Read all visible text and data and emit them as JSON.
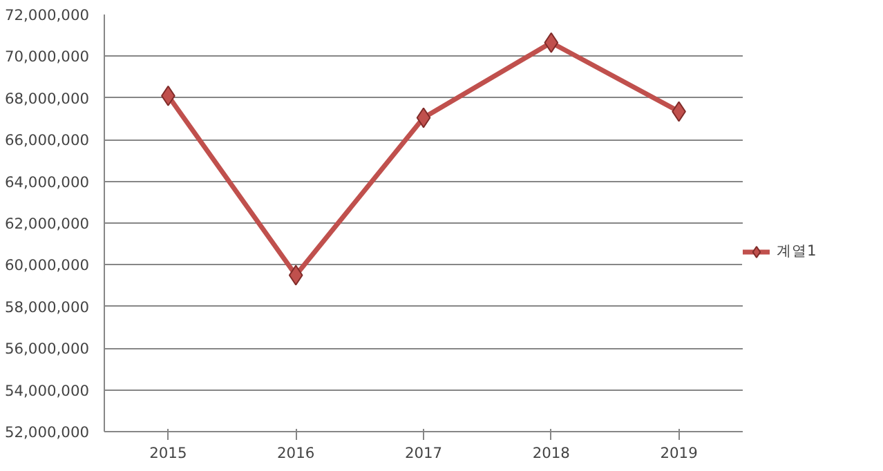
{
  "chart_data": {
    "type": "line",
    "categories": [
      "2015",
      "2016",
      "2017",
      "2018",
      "2019"
    ],
    "series": [
      {
        "name": "계열1",
        "color": "#c0504d",
        "values": [
          68100000,
          59500000,
          67050000,
          70650000,
          67350000
        ]
      }
    ],
    "ylim": [
      52000000,
      72000000
    ],
    "yticks": [
      {
        "value": 52000000,
        "label": "52,000,000"
      },
      {
        "value": 54000000,
        "label": "54,000,000"
      },
      {
        "value": 56000000,
        "label": "56,000,000"
      },
      {
        "value": 58000000,
        "label": "58,000,000"
      },
      {
        "value": 60000000,
        "label": "60,000,000"
      },
      {
        "value": 62000000,
        "label": "62,000,000"
      },
      {
        "value": 64000000,
        "label": "64,000,000"
      },
      {
        "value": 66000000,
        "label": "66,000,000"
      },
      {
        "value": 68000000,
        "label": "68,000,000"
      },
      {
        "value": 70000000,
        "label": "70,000,000"
      },
      {
        "value": 72000000,
        "label": "72,000,000"
      }
    ],
    "grid": "y",
    "legend": "right",
    "marker": "diamond",
    "line_style": "solid"
  }
}
